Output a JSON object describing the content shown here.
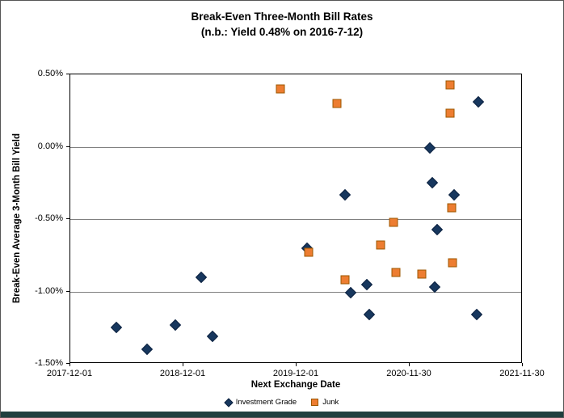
{
  "colors": {
    "investment_grade_fill": "#17375E",
    "investment_grade_edge": "#0D2240",
    "junk_fill": "#ED7D31",
    "junk_edge": "#9C5700",
    "gridline": "#808080",
    "plot_border": "#000000",
    "bottom_strip": "#20403F"
  },
  "chart_data": {
    "type": "scatter",
    "title": "Break-Even Three-Month Bill Rates",
    "subtitle": "(n.b.: Yield 0.48% on 2016-7-12)",
    "xlabel": "Next Exchange Date",
    "ylabel": "Break-Even Average 3-Month Bill Yield",
    "x_unit": "years since 2017-12-01",
    "xlim": [
      0,
      4
    ],
    "ylim": [
      -1.5,
      0.5
    ],
    "x_tick_values": [
      0,
      1,
      2,
      3,
      4
    ],
    "x_tick_labels": [
      "2017-12-01",
      "2018-12-01",
      "2019-12-01",
      "2020-11-30",
      "2021-11-30"
    ],
    "y_tick_values": [
      0.5,
      0.0,
      -0.5,
      -1.0,
      -1.5
    ],
    "y_tick_labels": [
      "0.50%",
      "0.00%",
      "-0.50%",
      "-1.00%",
      "-1.50%"
    ],
    "grid": "horizontal",
    "legend_position": "bottom",
    "series": [
      {
        "name": "Investment Grade",
        "marker": "diamond",
        "color": "#17375E",
        "edge": "#0D2240",
        "points": [
          [
            0.41,
            -1.25
          ],
          [
            0.68,
            -1.4
          ],
          [
            0.93,
            -1.23
          ],
          [
            1.16,
            -0.9
          ],
          [
            1.26,
            -1.31
          ],
          [
            2.09,
            -0.7
          ],
          [
            2.43,
            -0.33
          ],
          [
            2.48,
            -1.01
          ],
          [
            2.62,
            -0.95
          ],
          [
            2.64,
            -1.16
          ],
          [
            3.18,
            -0.01
          ],
          [
            3.2,
            -0.25
          ],
          [
            3.22,
            -0.97
          ],
          [
            3.24,
            -0.57
          ],
          [
            3.39,
            -0.33
          ],
          [
            3.59,
            -1.16
          ],
          [
            3.61,
            0.31
          ]
        ]
      },
      {
        "name": "Junk",
        "marker": "square",
        "color": "#ED7D31",
        "edge": "#9C5700",
        "points": [
          [
            1.86,
            0.4
          ],
          [
            2.11,
            -0.73
          ],
          [
            2.36,
            0.3
          ],
          [
            2.43,
            -0.92
          ],
          [
            2.74,
            -0.68
          ],
          [
            2.86,
            -0.52
          ],
          [
            2.88,
            -0.87
          ],
          [
            3.11,
            -0.88
          ],
          [
            3.36,
            0.43
          ],
          [
            3.36,
            0.23
          ],
          [
            3.37,
            -0.42
          ],
          [
            3.38,
            -0.8
          ]
        ]
      }
    ]
  }
}
